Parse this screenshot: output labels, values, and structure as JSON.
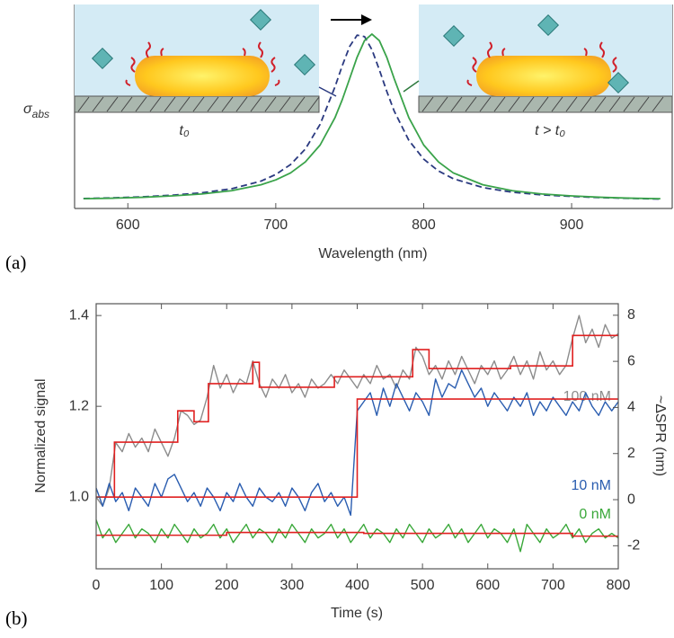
{
  "chart_data": [
    {
      "type": "line",
      "panel_label": "(a)",
      "xlabel": "Wavelength (nm)",
      "ylabel": "σ",
      "ylabel_subscript": "abs",
      "annotations": [
        "t₀",
        "t > t₀"
      ],
      "x": [
        570,
        590,
        610,
        630,
        650,
        670,
        690,
        700,
        710,
        720,
        730,
        740,
        745,
        750,
        755,
        760,
        765,
        770,
        775,
        780,
        790,
        800,
        810,
        820,
        840,
        860,
        880,
        900,
        920,
        940,
        960
      ],
      "xlim": [
        564,
        968
      ],
      "xticks": [
        600,
        700,
        800,
        900
      ],
      "ylim": [
        0,
        1.17
      ],
      "series": [
        {
          "color": "#2b3a80",
          "dashed": true,
          "values": [
            0.057,
            0.061,
            0.067,
            0.076,
            0.09,
            0.113,
            0.157,
            0.195,
            0.252,
            0.341,
            0.483,
            0.697,
            0.82,
            0.93,
            0.994,
            0.986,
            0.911,
            0.796,
            0.673,
            0.56,
            0.39,
            0.283,
            0.215,
            0.171,
            0.12,
            0.093,
            0.078,
            0.069,
            0.062,
            0.058,
            0.054
          ]
        },
        {
          "color": "#3aa34a",
          "dashed": false,
          "values": [
            0.056,
            0.059,
            0.064,
            0.072,
            0.083,
            0.102,
            0.136,
            0.164,
            0.204,
            0.267,
            0.364,
            0.52,
            0.625,
            0.746,
            0.868,
            0.963,
            1.0,
            0.963,
            0.868,
            0.746,
            0.52,
            0.364,
            0.267,
            0.204,
            0.136,
            0.102,
            0.083,
            0.072,
            0.064,
            0.059,
            0.056
          ]
        }
      ]
    },
    {
      "type": "line",
      "panel_label": "(b)",
      "xlabel": "Time (s)",
      "ylabel": "Normalized signal",
      "y2label": "~ΔSPR (nm)",
      "x": [
        0,
        10,
        20,
        30,
        40,
        50,
        60,
        70,
        80,
        90,
        100,
        110,
        120,
        130,
        140,
        150,
        160,
        170,
        180,
        190,
        200,
        210,
        220,
        230,
        240,
        250,
        260,
        270,
        280,
        290,
        300,
        310,
        320,
        330,
        340,
        350,
        360,
        370,
        380,
        390,
        400,
        410,
        420,
        430,
        440,
        450,
        460,
        470,
        480,
        490,
        500,
        510,
        520,
        530,
        540,
        550,
        560,
        570,
        580,
        590,
        600,
        610,
        620,
        630,
        640,
        650,
        660,
        670,
        680,
        690,
        700,
        710,
        720,
        730,
        740,
        750,
        760,
        770,
        780,
        790,
        800
      ],
      "xlim": [
        0,
        800
      ],
      "xticks": [
        0,
        100,
        200,
        300,
        400,
        500,
        600,
        700,
        800
      ],
      "ylim": [
        0.842,
        1.426
      ],
      "yticks": [
        {
          "value": 1,
          "label": "1.0"
        },
        1.2,
        1.4
      ],
      "y2lim": [
        -3,
        8.5
      ],
      "y2ticks": [
        -2,
        0,
        2,
        4,
        6,
        8
      ],
      "series": [
        {
          "name": "100 nM",
          "color": "#8c8c8c",
          "values": [
            1.0,
            0.98,
            1.02,
            1.12,
            1.1,
            1.14,
            1.11,
            1.13,
            1.1,
            1.15,
            1.12,
            1.09,
            1.13,
            1.19,
            1.18,
            1.16,
            1.17,
            1.22,
            1.29,
            1.24,
            1.27,
            1.23,
            1.26,
            1.25,
            1.3,
            1.25,
            1.22,
            1.26,
            1.24,
            1.27,
            1.23,
            1.25,
            1.22,
            1.26,
            1.24,
            1.25,
            1.27,
            1.25,
            1.28,
            1.26,
            1.24,
            1.27,
            1.25,
            1.29,
            1.26,
            1.27,
            1.24,
            1.28,
            1.26,
            1.33,
            1.31,
            1.27,
            1.29,
            1.26,
            1.3,
            1.27,
            1.31,
            1.28,
            1.25,
            1.29,
            1.27,
            1.3,
            1.26,
            1.28,
            1.31,
            1.27,
            1.3,
            1.26,
            1.32,
            1.28,
            1.3,
            1.27,
            1.29,
            1.35,
            1.4,
            1.34,
            1.37,
            1.33,
            1.38,
            1.35,
            1.36
          ]
        },
        {
          "name": "10 nM",
          "color": "#2a5db0",
          "values": [
            1.02,
            0.98,
            1.03,
            0.99,
            1.01,
            0.97,
            1.02,
            1.0,
            0.98,
            1.03,
            1.0,
            1.04,
            1.05,
            1.02,
            0.99,
            1.01,
            0.98,
            1.02,
            1.0,
            0.97,
            1.01,
            0.99,
            1.03,
            1.0,
            0.98,
            1.02,
            1.0,
            0.99,
            1.01,
            0.98,
            1.02,
            1.0,
            0.97,
            1.01,
            1.03,
            0.99,
            1.01,
            0.98,
            1.0,
            0.96,
            1.19,
            1.21,
            1.23,
            1.18,
            1.24,
            1.2,
            1.25,
            1.22,
            1.19,
            1.23,
            1.21,
            1.18,
            1.26,
            1.22,
            1.25,
            1.24,
            1.28,
            1.25,
            1.22,
            1.24,
            1.2,
            1.23,
            1.21,
            1.19,
            1.22,
            1.2,
            1.23,
            1.18,
            1.21,
            1.19,
            1.22,
            1.2,
            1.18,
            1.21,
            1.19,
            1.23,
            1.2,
            1.18,
            1.21,
            1.19,
            1.21
          ]
        },
        {
          "name": "0 nM",
          "color": "#3aa83a",
          "values": [
            0.95,
            0.91,
            0.93,
            0.9,
            0.92,
            0.94,
            0.91,
            0.93,
            0.92,
            0.9,
            0.93,
            0.91,
            0.94,
            0.92,
            0.9,
            0.93,
            0.91,
            0.92,
            0.94,
            0.91,
            0.93,
            0.9,
            0.92,
            0.94,
            0.91,
            0.93,
            0.92,
            0.9,
            0.93,
            0.91,
            0.94,
            0.92,
            0.9,
            0.93,
            0.91,
            0.92,
            0.94,
            0.91,
            0.93,
            0.9,
            0.92,
            0.94,
            0.91,
            0.93,
            0.92,
            0.9,
            0.93,
            0.91,
            0.94,
            0.92,
            0.9,
            0.93,
            0.91,
            0.92,
            0.94,
            0.91,
            0.93,
            0.9,
            0.92,
            0.94,
            0.91,
            0.93,
            0.92,
            0.9,
            0.93,
            0.88,
            0.94,
            0.92,
            0.9,
            0.93,
            0.91,
            0.92,
            0.94,
            0.91,
            0.93,
            0.9,
            0.92,
            0.93,
            0.91,
            0.92,
            0.91
          ]
        }
      ],
      "fits": [
        {
          "color": "#e02020",
          "x": [
            0,
            28,
            28,
            125,
            125,
            150,
            150,
            172,
            172,
            240,
            240,
            250,
            250,
            365,
            365,
            485,
            485,
            510,
            510,
            635,
            635,
            730,
            730,
            800
          ],
          "values": [
            1.0,
            1.0,
            1.121,
            1.121,
            1.19,
            1.19,
            1.166,
            1.166,
            1.25,
            1.25,
            1.297,
            1.297,
            1.242,
            1.242,
            1.265,
            1.265,
            1.325,
            1.325,
            1.283,
            1.283,
            1.289,
            1.289,
            1.356,
            1.356
          ]
        },
        {
          "color": "#e02020",
          "x": [
            0,
            400,
            400,
            800
          ],
          "values": [
            1.0,
            1.0,
            1.216,
            1.216
          ]
        },
        {
          "color": "#e02020",
          "x": [
            0,
            200,
            200,
            410,
            410,
            730,
            730,
            800
          ],
          "values": [
            0.916,
            0.916,
            0.922,
            0.922,
            0.92,
            0.92,
            0.914,
            0.914
          ]
        }
      ]
    }
  ]
}
